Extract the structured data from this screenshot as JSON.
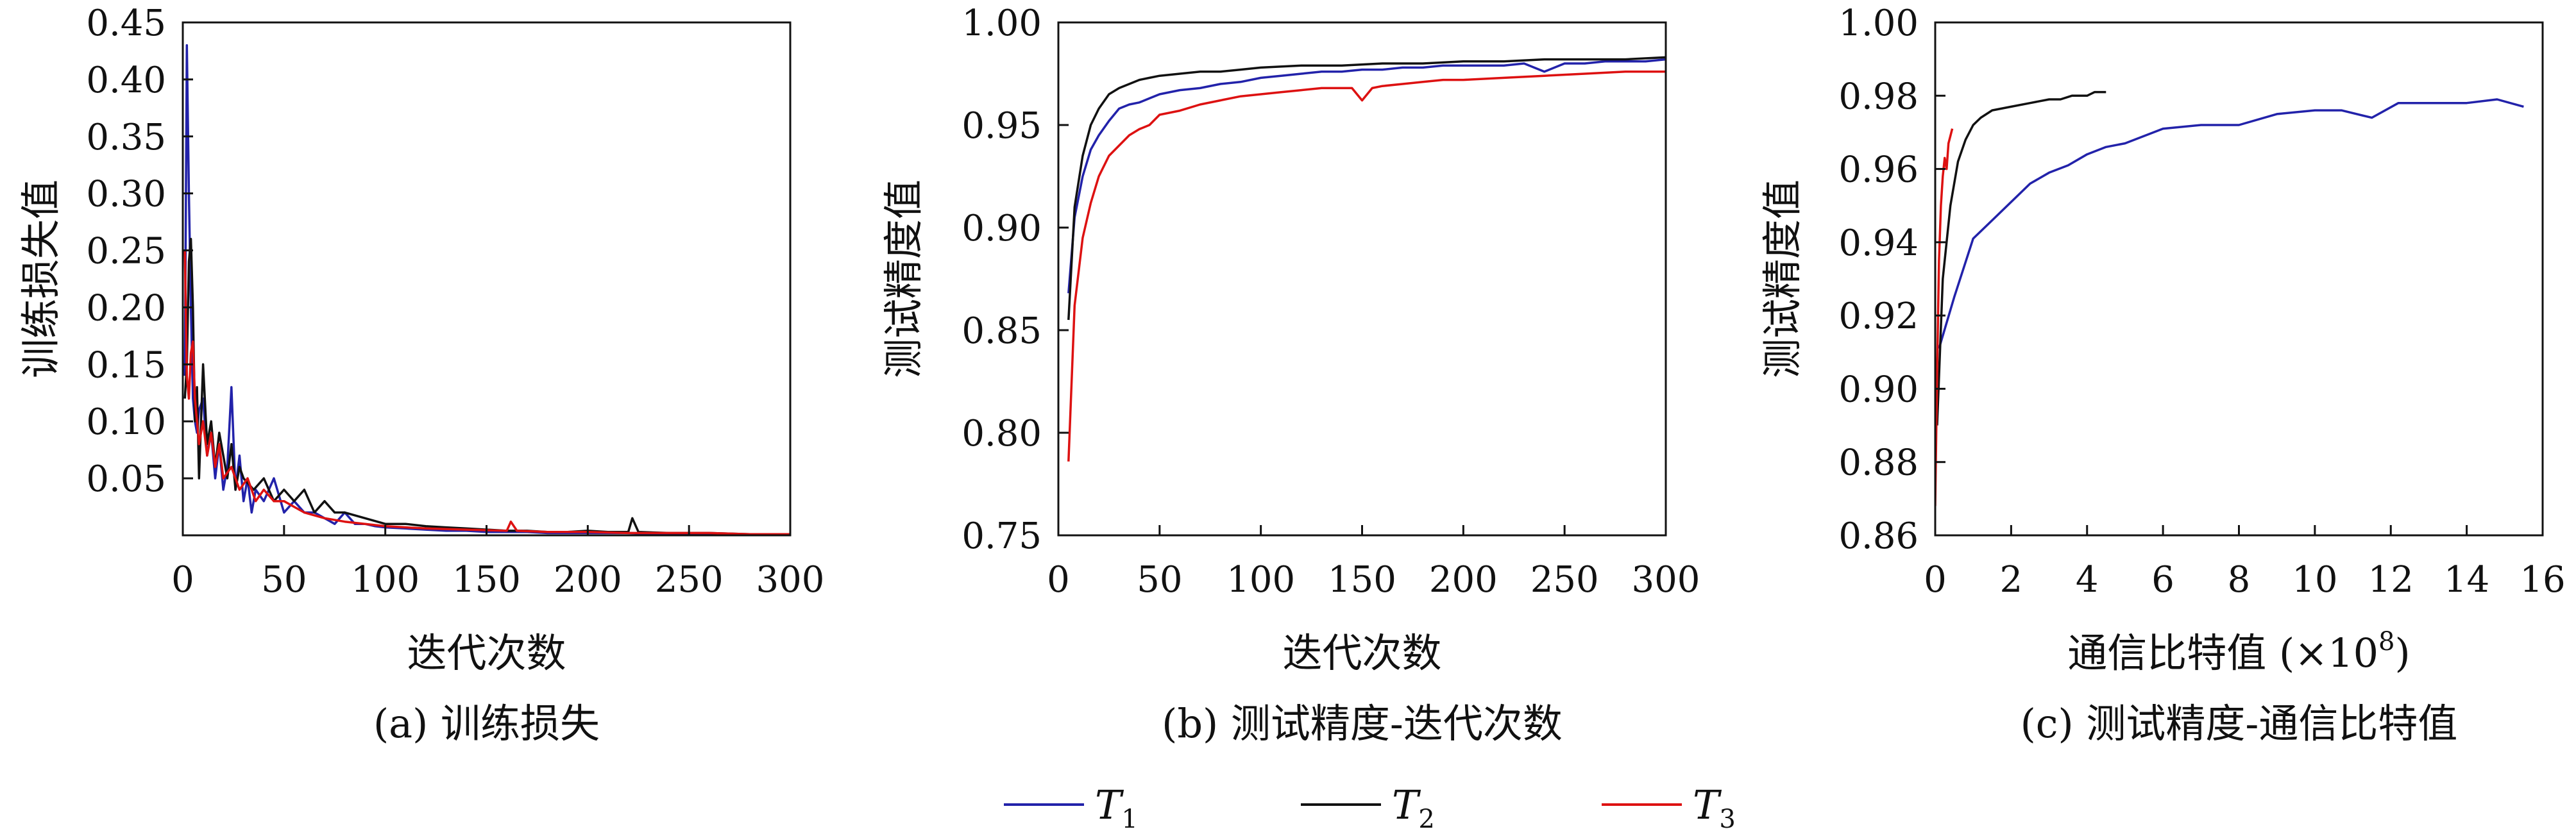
{
  "chart_data": [
    {
      "type": "line",
      "caption": "(a) 训练损失",
      "xlabel": "迭代次数",
      "ylabel": "训练损失值",
      "xlim": [
        0,
        300
      ],
      "ylim": [
        0,
        0.45
      ],
      "xticks": [
        0,
        50,
        100,
        150,
        200,
        250,
        300
      ],
      "yticks": [
        0.05,
        0.1,
        0.15,
        0.2,
        0.25,
        0.3,
        0.35,
        0.4,
        0.45
      ],
      "yticks_labels": [
        "0.05",
        "0.10",
        "0.15",
        "0.20",
        "0.25",
        "0.30",
        "0.35",
        "0.40",
        "0.45"
      ],
      "series": [
        {
          "name": "T1",
          "color": "#2222aa",
          "x": [
            1,
            2,
            3,
            4,
            5,
            6,
            7,
            8,
            10,
            12,
            14,
            16,
            18,
            20,
            22,
            24,
            26,
            28,
            30,
            32,
            34,
            36,
            40,
            45,
            50,
            55,
            60,
            65,
            70,
            75,
            80,
            85,
            90,
            95,
            100,
            110,
            120,
            130,
            140,
            150,
            160,
            170,
            180,
            190,
            200,
            220,
            240,
            260,
            280,
            300
          ],
          "y": [
            0.14,
            0.43,
            0.3,
            0.2,
            0.12,
            0.1,
            0.09,
            0.11,
            0.12,
            0.07,
            0.09,
            0.05,
            0.08,
            0.04,
            0.06,
            0.13,
            0.04,
            0.07,
            0.03,
            0.05,
            0.02,
            0.04,
            0.03,
            0.05,
            0.02,
            0.03,
            0.02,
            0.02,
            0.015,
            0.01,
            0.02,
            0.01,
            0.01,
            0.008,
            0.007,
            0.006,
            0.005,
            0.004,
            0.004,
            0.003,
            0.003,
            0.003,
            0.002,
            0.002,
            0.002,
            0.002,
            0.001,
            0.001,
            0.001,
            0.001
          ]
        },
        {
          "name": "T2",
          "color": "#111111",
          "x": [
            1,
            2,
            3,
            4,
            5,
            6,
            7,
            8,
            10,
            12,
            14,
            16,
            18,
            20,
            22,
            24,
            26,
            28,
            30,
            35,
            40,
            45,
            50,
            55,
            60,
            65,
            70,
            75,
            80,
            90,
            100,
            110,
            120,
            130,
            140,
            150,
            160,
            170,
            180,
            190,
            200,
            210,
            220,
            222,
            225,
            240,
            260,
            280,
            300
          ],
          "y": [
            0.12,
            0.15,
            0.24,
            0.26,
            0.2,
            0.1,
            0.13,
            0.05,
            0.15,
            0.08,
            0.1,
            0.06,
            0.09,
            0.07,
            0.05,
            0.08,
            0.04,
            0.06,
            0.05,
            0.04,
            0.05,
            0.03,
            0.04,
            0.03,
            0.04,
            0.02,
            0.03,
            0.02,
            0.02,
            0.015,
            0.01,
            0.01,
            0.008,
            0.007,
            0.006,
            0.005,
            0.004,
            0.004,
            0.003,
            0.003,
            0.004,
            0.003,
            0.003,
            0.015,
            0.003,
            0.002,
            0.002,
            0.001,
            0.001
          ]
        },
        {
          "name": "T3",
          "color": "#dd1111",
          "x": [
            1,
            2,
            3,
            4,
            5,
            6,
            8,
            10,
            12,
            14,
            16,
            18,
            20,
            24,
            28,
            32,
            36,
            40,
            45,
            50,
            55,
            60,
            70,
            80,
            90,
            100,
            120,
            140,
            160,
            162,
            165,
            180,
            200,
            220,
            240,
            260,
            280,
            300
          ],
          "y": [
            0.25,
            0.14,
            0.12,
            0.16,
            0.17,
            0.12,
            0.08,
            0.1,
            0.07,
            0.09,
            0.06,
            0.08,
            0.05,
            0.06,
            0.04,
            0.05,
            0.03,
            0.04,
            0.03,
            0.03,
            0.025,
            0.02,
            0.015,
            0.012,
            0.01,
            0.008,
            0.006,
            0.005,
            0.004,
            0.012,
            0.004,
            0.003,
            0.003,
            0.002,
            0.002,
            0.002,
            0.001,
            0.001
          ]
        }
      ]
    },
    {
      "type": "line",
      "caption": "(b) 测试精度-迭代次数",
      "xlabel": "迭代次数",
      "ylabel": "测试精度值",
      "xlim": [
        0,
        300
      ],
      "ylim": [
        0.75,
        1.0
      ],
      "xticks": [
        0,
        50,
        100,
        150,
        200,
        250,
        300
      ],
      "yticks": [
        0.75,
        0.8,
        0.85,
        0.9,
        0.95,
        1.0
      ],
      "yticks_labels": [
        "0.75",
        "0.80",
        "0.85",
        "0.90",
        "0.95",
        "1.00"
      ],
      "series": [
        {
          "name": "T1",
          "color": "#2222aa",
          "x": [
            5,
            8,
            12,
            16,
            20,
            25,
            30,
            35,
            40,
            45,
            50,
            60,
            70,
            80,
            90,
            100,
            110,
            120,
            130,
            140,
            150,
            160,
            170,
            180,
            190,
            200,
            210,
            220,
            230,
            240,
            250,
            260,
            270,
            280,
            290,
            300
          ],
          "y": [
            0.868,
            0.905,
            0.925,
            0.938,
            0.945,
            0.952,
            0.958,
            0.96,
            0.961,
            0.963,
            0.965,
            0.967,
            0.968,
            0.97,
            0.971,
            0.973,
            0.974,
            0.975,
            0.976,
            0.976,
            0.977,
            0.977,
            0.978,
            0.978,
            0.979,
            0.979,
            0.979,
            0.979,
            0.98,
            0.976,
            0.98,
            0.98,
            0.981,
            0.981,
            0.981,
            0.982
          ]
        },
        {
          "name": "T2",
          "color": "#111111",
          "x": [
            5,
            8,
            12,
            16,
            20,
            25,
            30,
            35,
            40,
            45,
            50,
            60,
            70,
            80,
            90,
            100,
            120,
            140,
            160,
            180,
            200,
            220,
            240,
            260,
            280,
            300
          ],
          "y": [
            0.855,
            0.91,
            0.935,
            0.95,
            0.958,
            0.965,
            0.968,
            0.97,
            0.972,
            0.973,
            0.974,
            0.975,
            0.976,
            0.976,
            0.977,
            0.978,
            0.979,
            0.979,
            0.98,
            0.98,
            0.981,
            0.981,
            0.982,
            0.982,
            0.982,
            0.983
          ]
        },
        {
          "name": "T3",
          "color": "#dd1111",
          "x": [
            5,
            8,
            12,
            16,
            20,
            25,
            30,
            35,
            40,
            45,
            50,
            60,
            70,
            80,
            90,
            100,
            110,
            120,
            130,
            140,
            145,
            150,
            155,
            160,
            170,
            180,
            190,
            200,
            220,
            240,
            260,
            280,
            300
          ],
          "y": [
            0.786,
            0.862,
            0.895,
            0.912,
            0.925,
            0.935,
            0.94,
            0.945,
            0.948,
            0.95,
            0.955,
            0.957,
            0.96,
            0.962,
            0.964,
            0.965,
            0.966,
            0.967,
            0.968,
            0.968,
            0.968,
            0.962,
            0.968,
            0.969,
            0.97,
            0.971,
            0.972,
            0.972,
            0.973,
            0.974,
            0.975,
            0.976,
            0.976
          ]
        }
      ]
    },
    {
      "type": "line",
      "caption": "(c) 测试精度-通信比特值",
      "xlabel": "通信比特值 (×10",
      "xlabel_exp": "8",
      "xlabel_close": ")",
      "ylabel": "测试精度值",
      "xlim": [
        0,
        16
      ],
      "ylim": [
        0.86,
        1.0
      ],
      "xticks": [
        0,
        2,
        4,
        6,
        8,
        10,
        12,
        14,
        16
      ],
      "yticks": [
        0.86,
        0.88,
        0.9,
        0.92,
        0.94,
        0.96,
        0.98,
        1.0
      ],
      "yticks_labels": [
        "0.86",
        "0.88",
        "0.90",
        "0.92",
        "0.94",
        "0.96",
        "0.98",
        "1.00"
      ],
      "series": [
        {
          "name": "T1",
          "color": "#2222aa",
          "x": [
            0.1,
            0.5,
            1.0,
            1.5,
            2.0,
            2.5,
            3.0,
            3.5,
            4.0,
            4.5,
            5.0,
            6.0,
            7.0,
            8.0,
            9.0,
            10.0,
            10.7,
            11.5,
            12.2,
            13.0,
            14.0,
            14.8,
            15.5
          ],
          "y": [
            0.911,
            0.925,
            0.941,
            0.946,
            0.951,
            0.956,
            0.959,
            0.961,
            0.964,
            0.966,
            0.967,
            0.971,
            0.972,
            0.972,
            0.975,
            0.976,
            0.976,
            0.974,
            0.978,
            0.978,
            0.978,
            0.979,
            0.977
          ]
        },
        {
          "name": "T2",
          "color": "#111111",
          "x": [
            0.05,
            0.2,
            0.4,
            0.6,
            0.8,
            1.0,
            1.2,
            1.5,
            2.0,
            2.5,
            3.0,
            3.3,
            3.6,
            4.0,
            4.2,
            4.5
          ],
          "y": [
            0.89,
            0.93,
            0.95,
            0.962,
            0.968,
            0.972,
            0.974,
            0.976,
            0.977,
            0.978,
            0.979,
            0.979,
            0.98,
            0.98,
            0.981,
            0.981
          ]
        },
        {
          "name": "T3",
          "color": "#dd1111",
          "x": [
            0.0,
            0.05,
            0.1,
            0.15,
            0.2,
            0.25,
            0.3,
            0.35,
            0.4,
            0.45
          ],
          "y": [
            0.868,
            0.905,
            0.935,
            0.95,
            0.958,
            0.963,
            0.96,
            0.967,
            0.969,
            0.971
          ]
        }
      ]
    }
  ],
  "legend": {
    "placement": "bottom-center",
    "entries": [
      {
        "symbol": "T",
        "sub": "1",
        "color": "#2222aa"
      },
      {
        "symbol": "T",
        "sub": "2",
        "color": "#111111"
      },
      {
        "symbol": "T",
        "sub": "3",
        "color": "#dd1111"
      }
    ]
  }
}
